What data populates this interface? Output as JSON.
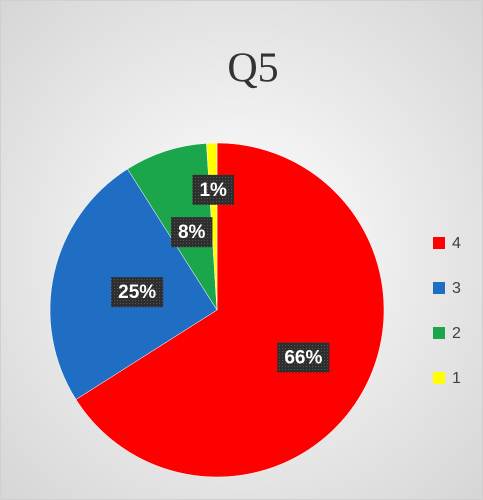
{
  "chart_data": {
    "type": "pie",
    "title": "Q5",
    "categories": [
      "4",
      "3",
      "2",
      "1"
    ],
    "values": [
      66,
      25,
      8,
      1
    ],
    "value_labels": [
      "66%",
      "25%",
      "8%",
      "1%"
    ],
    "colors": [
      "#ff0000",
      "#1f6ec3",
      "#1ca64b",
      "#ffff00"
    ],
    "legend": "right"
  }
}
